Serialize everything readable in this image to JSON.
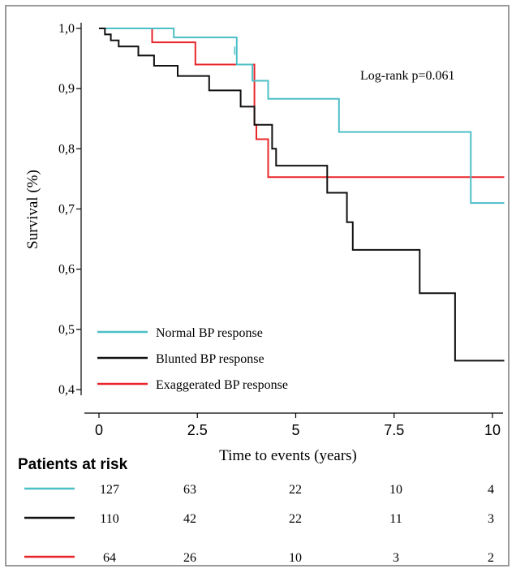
{
  "chart_data": {
    "type": "line",
    "step": true,
    "xlabel": "Time to events (years)",
    "ylabel": "Survival (%)",
    "xlim": [
      0,
      10.3
    ],
    "ylim": [
      0.4,
      1.0
    ],
    "xticks": [
      0,
      2.5,
      5,
      7.5,
      10
    ],
    "xtick_labels": [
      "0",
      "2.5",
      "5",
      "7.5",
      "10"
    ],
    "yticks": [
      0.4,
      0.5,
      0.6,
      0.7,
      0.8,
      0.9,
      1.0
    ],
    "ytick_labels": [
      "0,4",
      "0,5",
      "0,6",
      "0,7",
      "0,8",
      "0,9",
      "1,0"
    ],
    "annotation": "Log-rank p=0.061",
    "legend_position": "bottom-left",
    "series": [
      {
        "name": "Normal BP response",
        "color": "#4dbfc6",
        "points": [
          [
            0,
            1.0
          ],
          [
            1.9,
            1.0
          ],
          [
            1.9,
            0.985
          ],
          [
            3.5,
            0.985
          ],
          [
            3.5,
            0.94
          ],
          [
            3.9,
            0.94
          ],
          [
            3.9,
            0.913
          ],
          [
            4.3,
            0.913
          ],
          [
            4.3,
            0.883
          ],
          [
            6.1,
            0.883
          ],
          [
            6.1,
            0.828
          ],
          [
            9.45,
            0.828
          ],
          [
            9.45,
            0.71
          ],
          [
            10.3,
            0.71
          ]
        ],
        "censor": [
          [
            3.45,
            0.963
          ]
        ]
      },
      {
        "name": "Blunted BP response",
        "color": "#111111",
        "points": [
          [
            0,
            1.0
          ],
          [
            0.15,
            1.0
          ],
          [
            0.15,
            0.99
          ],
          [
            0.3,
            0.99
          ],
          [
            0.3,
            0.98
          ],
          [
            0.5,
            0.98
          ],
          [
            0.5,
            0.97
          ],
          [
            1.0,
            0.97
          ],
          [
            1.0,
            0.955
          ],
          [
            1.4,
            0.955
          ],
          [
            1.4,
            0.938
          ],
          [
            2.0,
            0.938
          ],
          [
            2.0,
            0.921
          ],
          [
            2.8,
            0.921
          ],
          [
            2.8,
            0.897
          ],
          [
            3.6,
            0.897
          ],
          [
            3.6,
            0.87
          ],
          [
            3.95,
            0.87
          ],
          [
            3.95,
            0.84
          ],
          [
            4.4,
            0.84
          ],
          [
            4.4,
            0.8
          ],
          [
            4.5,
            0.8
          ],
          [
            4.5,
            0.772
          ],
          [
            5.8,
            0.772
          ],
          [
            5.8,
            0.727
          ],
          [
            6.3,
            0.727
          ],
          [
            6.3,
            0.678
          ],
          [
            6.45,
            0.678
          ],
          [
            6.45,
            0.632
          ],
          [
            8.15,
            0.632
          ],
          [
            8.15,
            0.56
          ],
          [
            9.05,
            0.56
          ],
          [
            9.05,
            0.448
          ],
          [
            10.3,
            0.448
          ]
        ]
      },
      {
        "name": "Exaggerated BP response",
        "color": "#e8262a",
        "points": [
          [
            0,
            1.0
          ],
          [
            1.35,
            1.0
          ],
          [
            1.35,
            0.977
          ],
          [
            2.45,
            0.977
          ],
          [
            2.45,
            0.94
          ],
          [
            3.95,
            0.94
          ],
          [
            3.95,
            0.84
          ],
          [
            4.0,
            0.84
          ],
          [
            4.0,
            0.816
          ],
          [
            4.3,
            0.816
          ],
          [
            4.3,
            0.753
          ],
          [
            10.3,
            0.753
          ]
        ]
      }
    ]
  },
  "risk_table": {
    "title": "Patients at risk",
    "rows": [
      {
        "color": "#4dbfc6",
        "values": [
          "127",
          "63",
          "22",
          "10",
          "4"
        ]
      },
      {
        "color": "#111111",
        "values": [
          "110",
          "42",
          "22",
          "11",
          "3"
        ]
      },
      {
        "color": "#e8262a",
        "values": [
          "64",
          "26",
          "10",
          "3",
          "2"
        ]
      }
    ]
  }
}
